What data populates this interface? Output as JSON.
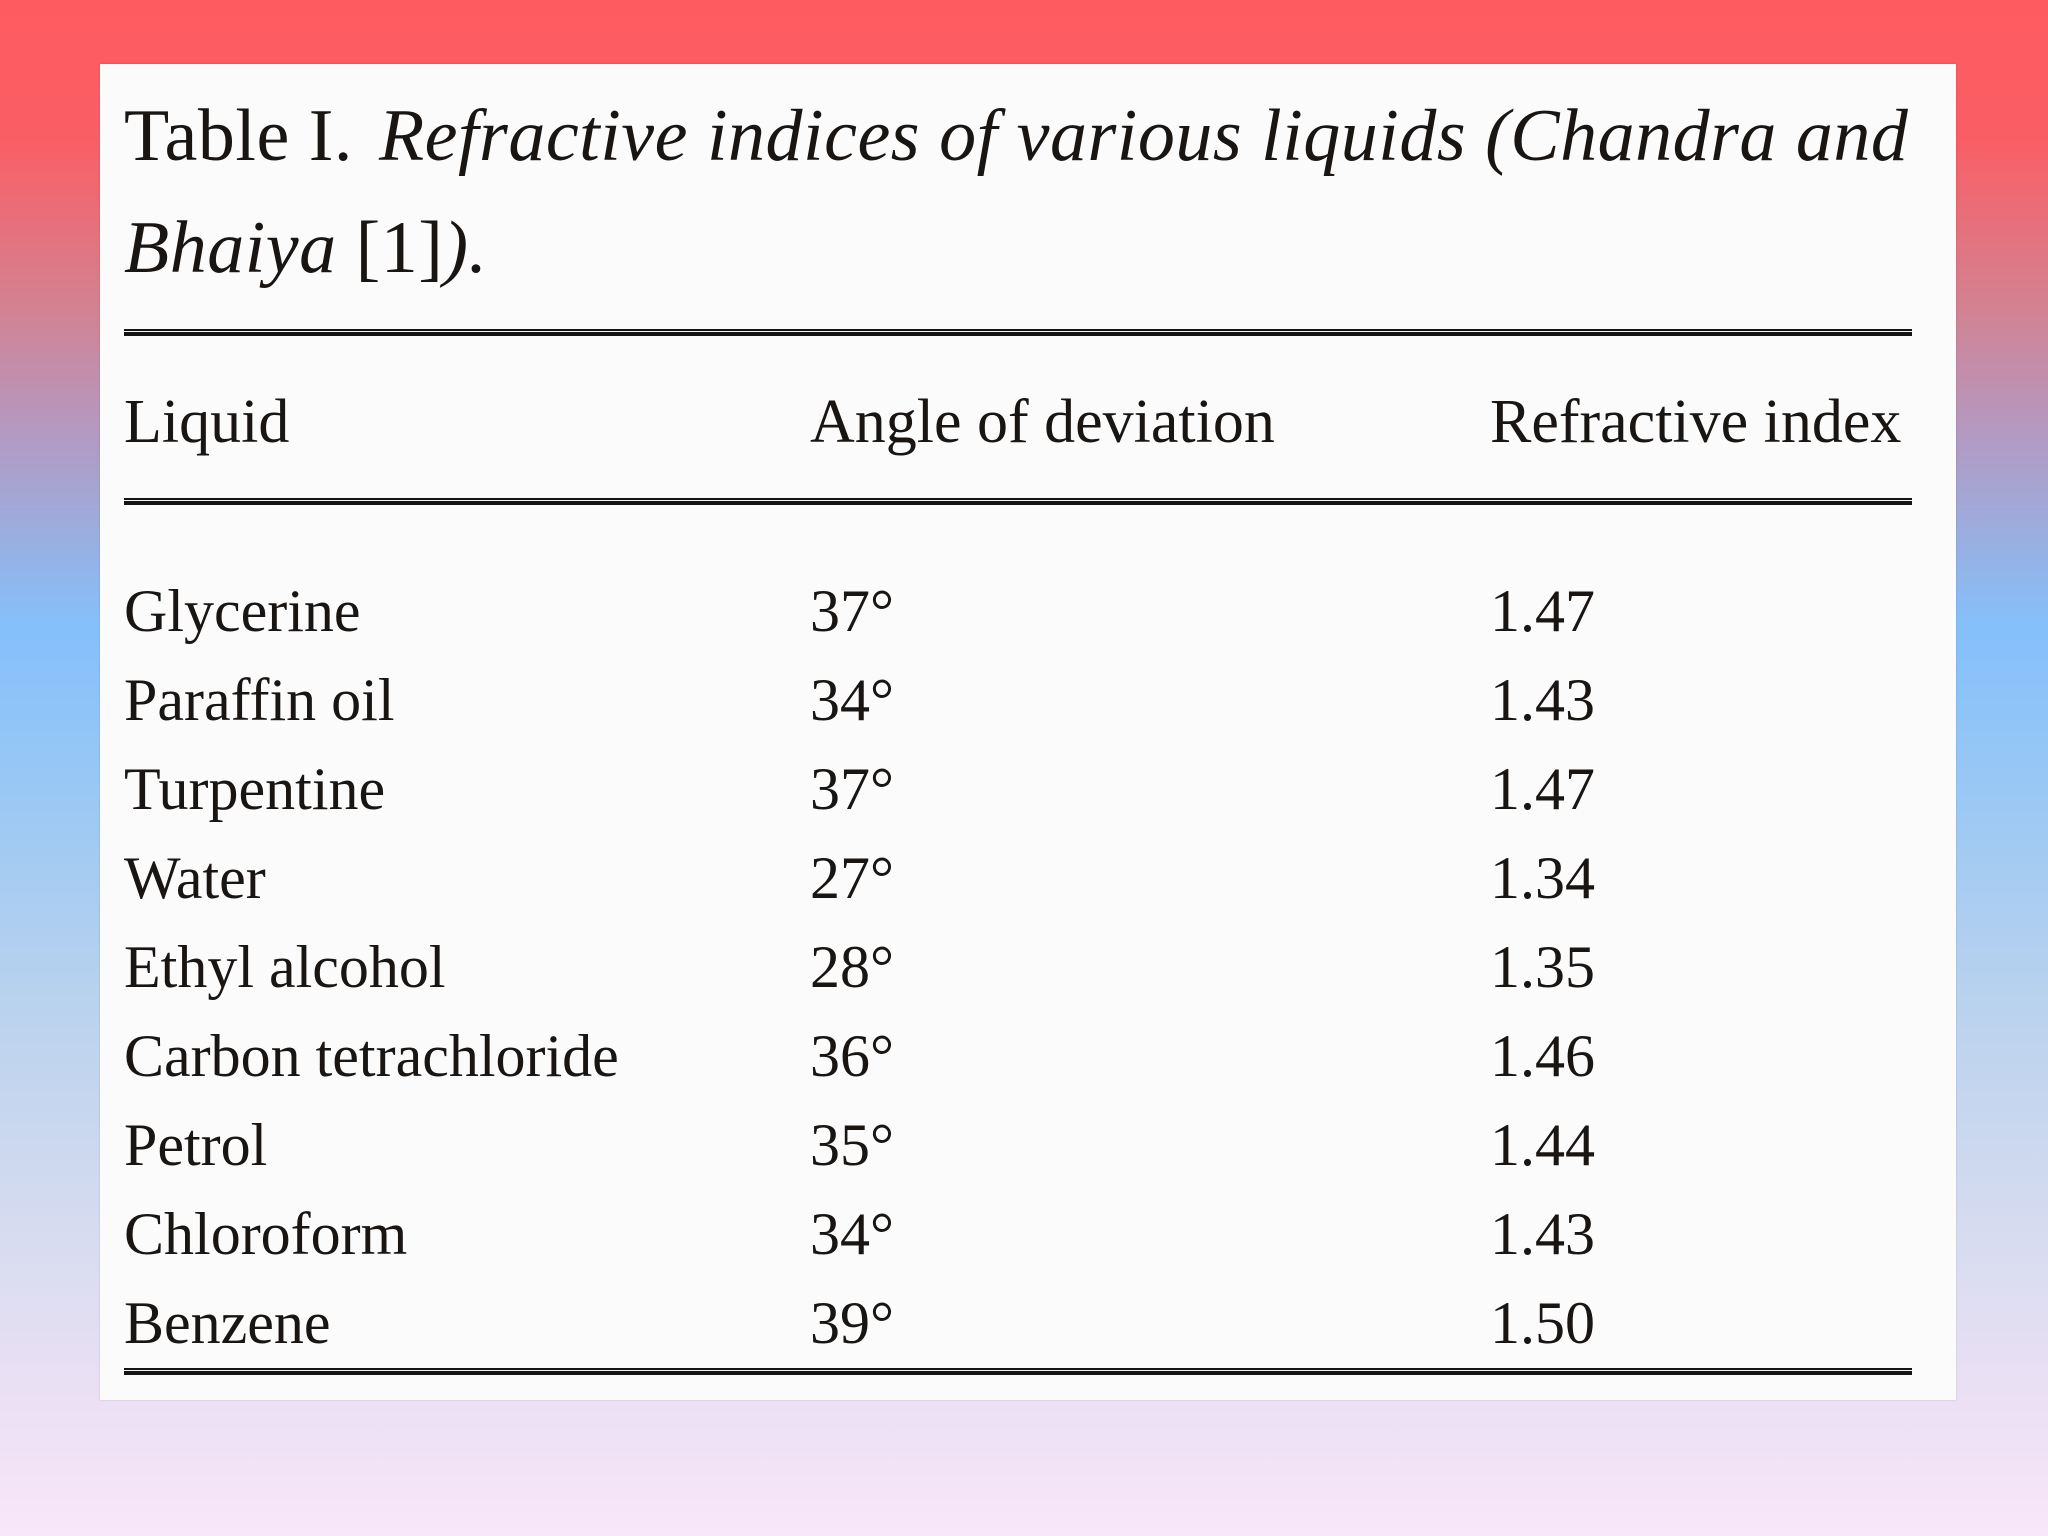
{
  "colors": {
    "background_top_red": "#fe5b60",
    "background_dusty_rose": "#d5808f",
    "background_mauve": "#b09cc5",
    "background_sky_blue": "#85c0fb",
    "background_pale_blue": "#b9d2ee",
    "background_bottom_pink": "#f9e6fa",
    "panel_background": "#fcfbfb",
    "text": "#181512",
    "rule": "#141414"
  },
  "caption": {
    "label": "Table I.",
    "line1_italic": "Refractive indices of various liquids (Chandra and",
    "line2_italic": "Bhaiya",
    "reference": "[1]",
    "closing": ")."
  },
  "table": {
    "headers": [
      "Liquid",
      "Angle of deviation",
      "Refractive index"
    ],
    "rows": [
      [
        "Glycerine",
        "37°",
        "1.47"
      ],
      [
        "Paraffin oil",
        "34°",
        "1.43"
      ],
      [
        "Turpentine",
        "37°",
        "1.47"
      ],
      [
        "Water",
        "27°",
        "1.34"
      ],
      [
        "Ethyl alcohol",
        "28°",
        "1.35"
      ],
      [
        "Carbon tetrachloride",
        "36°",
        "1.46"
      ],
      [
        "Petrol",
        "35°",
        "1.44"
      ],
      [
        "Chloroform",
        "34°",
        "1.43"
      ],
      [
        "Benzene",
        "39°",
        "1.50"
      ]
    ]
  },
  "chart_data": {
    "type": "table",
    "title": "Table I. Refractive indices of various liquids (Chandra and Bhaiya [1]).",
    "columns": [
      "Liquid",
      "Angle of deviation",
      "Refractive index"
    ],
    "rows": [
      [
        "Glycerine",
        "37°",
        "1.47"
      ],
      [
        "Paraffin oil",
        "34°",
        "1.43"
      ],
      [
        "Turpentine",
        "37°",
        "1.47"
      ],
      [
        "Water",
        "27°",
        "1.34"
      ],
      [
        "Ethyl alcohol",
        "28°",
        "1.35"
      ],
      [
        "Carbon tetrachloride",
        "36°",
        "1.46"
      ],
      [
        "Petrol",
        "35°",
        "1.44"
      ],
      [
        "Chloroform",
        "34°",
        "1.43"
      ],
      [
        "Benzene",
        "39°",
        "1.50"
      ]
    ]
  }
}
